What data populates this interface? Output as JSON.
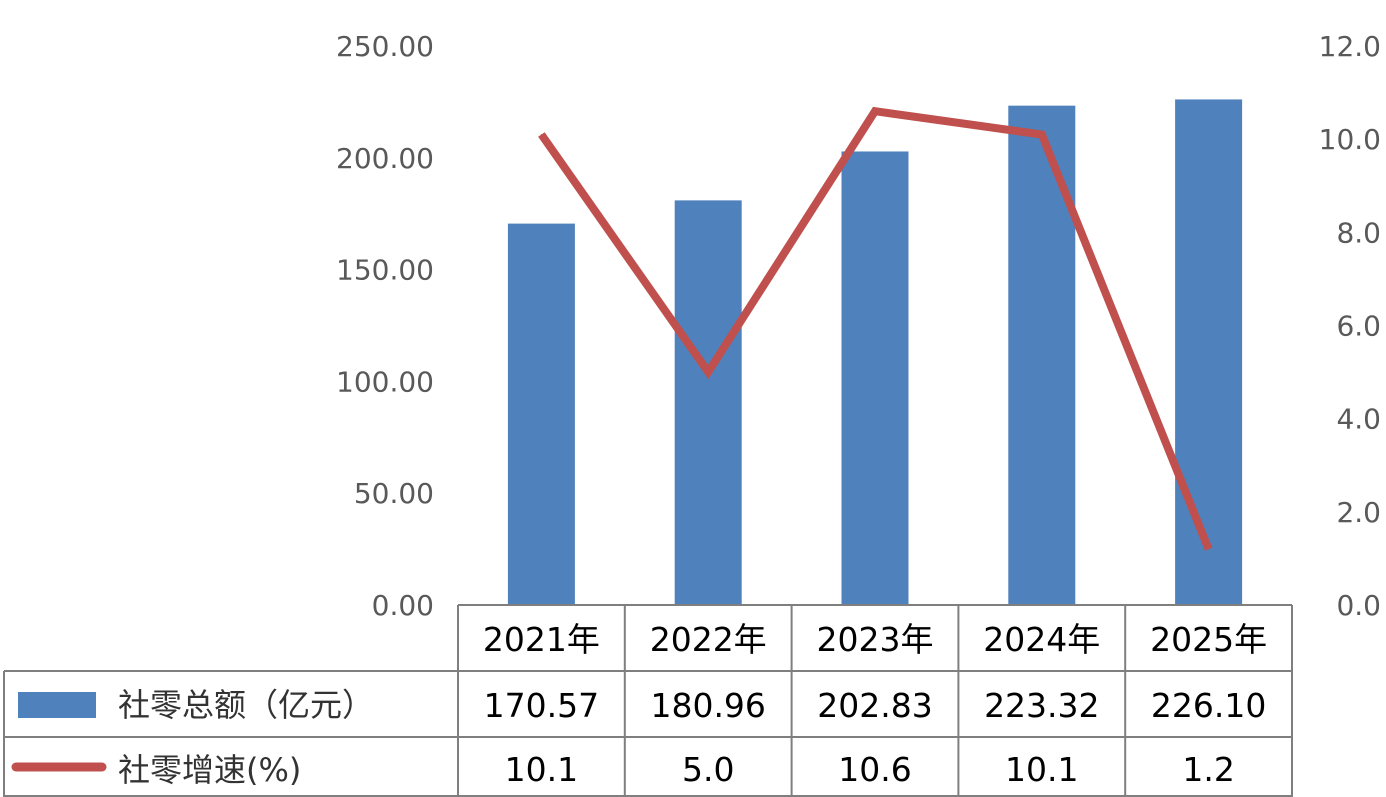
{
  "chart_data": {
    "type": "bar",
    "categories": [
      "2021年",
      "2022年",
      "2023年",
      "2024年",
      "2025年"
    ],
    "series": [
      {
        "name": "社零总额（亿元）",
        "type": "bar",
        "axis": "left",
        "color": "#4f81bd",
        "values": [
          170.57,
          180.96,
          202.83,
          223.32,
          226.1
        ],
        "labels": [
          "170.57",
          "180.96",
          "202.83",
          "223.32",
          "226.10"
        ]
      },
      {
        "name": "社零增速(%)",
        "type": "line",
        "axis": "right",
        "color": "#c0504d",
        "values": [
          10.1,
          5.0,
          10.6,
          10.1,
          1.2
        ],
        "labels": [
          "10.1",
          "5.0",
          "10.6",
          "10.1",
          "1.2"
        ]
      }
    ],
    "y_left": {
      "ylim": [
        0,
        250
      ],
      "ticks": [
        "0.00",
        "50.00",
        "100.00",
        "150.00",
        "200.00",
        "250.00"
      ]
    },
    "y_right": {
      "ylim": [
        0,
        12
      ],
      "ticks": [
        "0.0",
        "2.0",
        "4.0",
        "6.0",
        "8.0",
        "10.0",
        "12.0"
      ]
    },
    "title": "",
    "grid": false,
    "legend": "data-table-left"
  }
}
